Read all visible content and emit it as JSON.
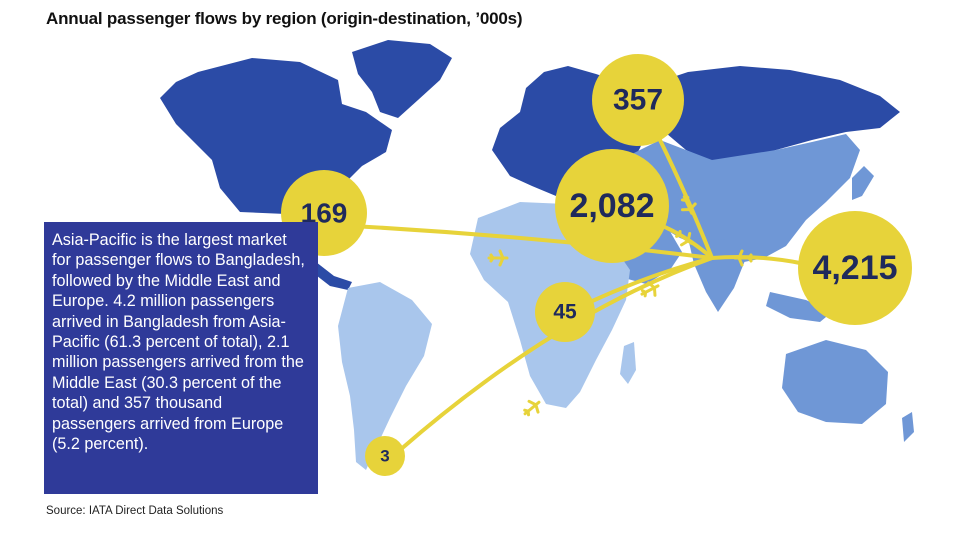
{
  "title": "Annual passenger flows by region (origin-destination, ’000s)",
  "note": "Asia-Pacific is the largest market for passenger flows to Bangladesh, followed by the Middle East and Europe. 4.2 million passengers arrived in Bangladesh from Asia-Pacific (61.3 percent of total), 2.1 million passengers arrived from the Middle East (30.3 percent of the total) and 357 thousand passengers arrived from Europe (5.2 percent).",
  "source": "Source: IATA Direct Data Solutions",
  "colors": {
    "ocean": "#ffffff",
    "land_light": "#a9c6ec",
    "land_mid": "#6f97d6",
    "land_dark": "#2b4ba6",
    "bubble": "#e7d33a",
    "bubble_text": "#1f2a5c",
    "note_bg": "#2f3a99"
  },
  "flows": [
    {
      "region": "Europe",
      "label": "357",
      "value": 357
    },
    {
      "region": "Middle East",
      "label": "2,082",
      "value": 2082
    },
    {
      "region": "Asia-Pacific",
      "label": "4,215",
      "value": 4215
    },
    {
      "region": "Americas",
      "label": "169",
      "value": 169
    },
    {
      "region": "Africa",
      "label": "45",
      "value": 45
    },
    {
      "region": "Latin America",
      "label": "3",
      "value": 3
    }
  ],
  "icons": [
    "plane-icon"
  ]
}
